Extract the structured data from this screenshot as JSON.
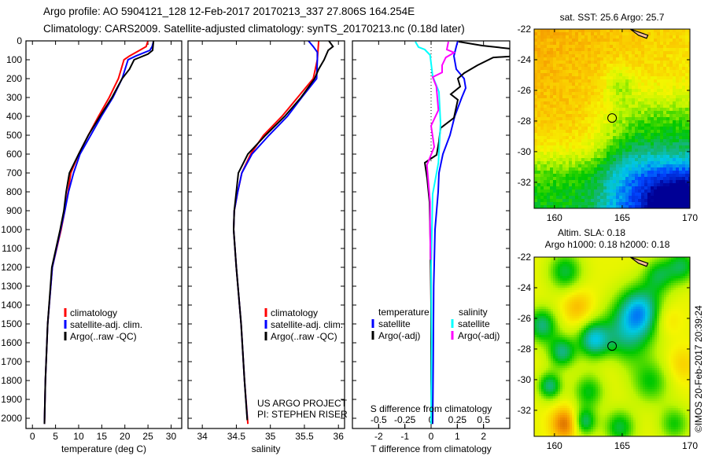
{
  "header": {
    "line1": "Argo profile: AO 5904121_128 12-Feb-2017 20170213_337 27.806S 164.254E",
    "line2": "Climatology: CARS2009. Satellite-adjusted climatology: synTS_20170213.nc (0.18d later)"
  },
  "colors": {
    "climatology": "#ff0000",
    "satellite": "#0000ff",
    "argo": "#000000",
    "s_satellite": "#00ffff",
    "s_argo": "#ff00ff"
  },
  "chart_data": [
    {
      "type": "line",
      "id": "temperature",
      "xlabel": "temperature (deg C)",
      "xlim": [
        -1.4,
        32.3
      ],
      "ylim": [
        0,
        2050
      ],
      "xticks": [
        0,
        5,
        10,
        15,
        20,
        25,
        30
      ],
      "yticks": [
        0,
        100,
        200,
        300,
        400,
        500,
        600,
        700,
        800,
        900,
        1000,
        1100,
        1200,
        1300,
        1400,
        1500,
        1600,
        1700,
        1800,
        1900,
        2000
      ],
      "legend": [
        "climatology",
        "satellite-adj. clim.",
        "Argo(..raw -QC)"
      ],
      "series": [
        {
          "name": "climatology",
          "color": "#ff0000",
          "points": [
            [
              25.0,
              0
            ],
            [
              24.6,
              30
            ],
            [
              23.2,
              50
            ],
            [
              21,
              80
            ],
            [
              19.8,
              100
            ],
            [
              18.6,
              200
            ],
            [
              16.6,
              300
            ],
            [
              14.3,
              400
            ],
            [
              12.1,
              500
            ],
            [
              10.0,
              600
            ],
            [
              8.3,
              700
            ],
            [
              7.7,
              800
            ],
            [
              7.0,
              900
            ],
            [
              6.2,
              1000
            ],
            [
              4.3,
              1200
            ],
            [
              3.3,
              1500
            ],
            [
              2.8,
              1800
            ],
            [
              2.6,
              2030
            ]
          ]
        },
        {
          "name": "satellite-adj. clim.",
          "color": "#0000ff",
          "points": [
            [
              26.2,
              0
            ],
            [
              25.9,
              30
            ],
            [
              25.4,
              50
            ],
            [
              22.4,
              80
            ],
            [
              20.7,
              100
            ],
            [
              19.4,
              200
            ],
            [
              17.4,
              300
            ],
            [
              14.9,
              400
            ],
            [
              12.6,
              500
            ],
            [
              10.3,
              600
            ],
            [
              8.9,
              700
            ],
            [
              7.8,
              800
            ],
            [
              7.0,
              900
            ],
            [
              6.1,
              1000
            ],
            [
              4.3,
              1200
            ],
            [
              3.3,
              1500
            ],
            [
              2.8,
              1800
            ],
            [
              2.6,
              2030
            ]
          ]
        },
        {
          "name": "Argo(..raw -QC)",
          "color": "#000000",
          "points": [
            [
              26.2,
              0
            ],
            [
              26.0,
              50
            ],
            [
              25.0,
              70
            ],
            [
              22.0,
              100
            ],
            [
              21.0,
              150
            ],
            [
              19.4,
              200
            ],
            [
              17.2,
              300
            ],
            [
              14.6,
              400
            ],
            [
              12.1,
              500
            ],
            [
              10.0,
              600
            ],
            [
              8.0,
              700
            ],
            [
              7.3,
              800
            ],
            [
              6.8,
              900
            ],
            [
              6.0,
              1000
            ],
            [
              4.2,
              1200
            ],
            [
              3.3,
              1500
            ],
            [
              2.8,
              1800
            ],
            [
              2.6,
              2030
            ]
          ]
        }
      ]
    },
    {
      "type": "line",
      "id": "salinity",
      "xlabel": "salinity",
      "xlim": [
        33.79,
        36.09
      ],
      "ylim": [
        0,
        2050
      ],
      "xticks": [
        34,
        34.5,
        35,
        35.5,
        36
      ],
      "legend": [
        "climatology",
        "satellite-adj. clim.",
        "Argo(..raw -QC)"
      ],
      "annotation": [
        "US ARGO PROJECT",
        "PI: STEPHEN RISER"
      ],
      "series": [
        {
          "name": "climatology",
          "color": "#ff0000",
          "points": [
            [
              35.71,
              0
            ],
            [
              35.69,
              100
            ],
            [
              35.63,
              200
            ],
            [
              35.4,
              300
            ],
            [
              35.17,
              400
            ],
            [
              34.9,
              500
            ],
            [
              34.71,
              600
            ],
            [
              34.58,
              700
            ],
            [
              34.52,
              800
            ],
            [
              34.47,
              900
            ],
            [
              34.46,
              1000
            ],
            [
              34.5,
              1200
            ],
            [
              34.57,
              1500
            ],
            [
              34.62,
              1800
            ],
            [
              34.67,
              2030
            ]
          ]
        },
        {
          "name": "satellite-adj. clim.",
          "color": "#0000ff",
          "points": [
            [
              35.56,
              0
            ],
            [
              35.63,
              30
            ],
            [
              35.69,
              60
            ],
            [
              35.69,
              100
            ],
            [
              35.68,
              200
            ],
            [
              35.46,
              300
            ],
            [
              35.25,
              400
            ],
            [
              34.98,
              500
            ],
            [
              34.73,
              600
            ],
            [
              34.58,
              700
            ],
            [
              34.52,
              800
            ],
            [
              34.47,
              900
            ],
            [
              34.46,
              1000
            ],
            [
              34.5,
              1200
            ],
            [
              34.57,
              1500
            ],
            [
              34.62,
              1800
            ],
            [
              34.66,
              2000
            ]
          ]
        },
        {
          "name": "Argo(..raw -QC)",
          "color": "#000000",
          "points": [
            [
              35.86,
              0
            ],
            [
              35.92,
              30
            ],
            [
              35.85,
              50
            ],
            [
              35.79,
              100
            ],
            [
              35.71,
              150
            ],
            [
              35.65,
              200
            ],
            [
              35.45,
              300
            ],
            [
              35.21,
              400
            ],
            [
              34.93,
              500
            ],
            [
              34.67,
              600
            ],
            [
              34.53,
              700
            ],
            [
              34.5,
              800
            ],
            [
              34.47,
              900
            ],
            [
              34.46,
              1000
            ],
            [
              34.5,
              1200
            ],
            [
              34.57,
              1500
            ],
            [
              34.62,
              1800
            ],
            [
              34.66,
              2010
            ]
          ]
        }
      ]
    },
    {
      "type": "line",
      "id": "difference",
      "xlabel": "T difference from climatology",
      "xlabel2": "S difference from climatology",
      "xlim": [
        -3,
        3
      ],
      "xlim_s": [
        -0.75,
        0.75
      ],
      "ylim": [
        0,
        2050
      ],
      "xticks": [
        -2,
        -1,
        0,
        1,
        2
      ],
      "xticks_s": [
        "-0.5",
        "-0.25",
        "0",
        "0.25",
        "0.5"
      ],
      "legend_temp_title": "temperature",
      "legend_sal_title": "salinity",
      "legend": [
        "satellite",
        "Argo(-adj)",
        "satellite",
        "Argo(-adj)"
      ],
      "series": [
        {
          "name": "T satellite",
          "color": "#0000ff",
          "points": [
            [
              1.02,
              0
            ],
            [
              0.96,
              30
            ],
            [
              0.87,
              80
            ],
            [
              0.96,
              150
            ],
            [
              1.26,
              200
            ],
            [
              1.32,
              250
            ],
            [
              1.17,
              300
            ],
            [
              0.9,
              400
            ],
            [
              0.72,
              500
            ],
            [
              0.45,
              600
            ],
            [
              0.3,
              700
            ],
            [
              0.27,
              800
            ],
            [
              0.21,
              900
            ],
            [
              0.15,
              1000
            ],
            [
              0.1,
              1300
            ],
            [
              0.08,
              1700
            ],
            [
              0.06,
              2030
            ]
          ]
        },
        {
          "name": "T Argo(-adj)",
          "color": "#000000",
          "points": [
            [
              1.05,
              4
            ],
            [
              1.95,
              25
            ],
            [
              3.3,
              46
            ],
            [
              3.3,
              70
            ],
            [
              2.97,
              83
            ],
            [
              2.37,
              88
            ],
            [
              1.77,
              129
            ],
            [
              1.26,
              171
            ],
            [
              1.02,
              200
            ],
            [
              1.11,
              242
            ],
            [
              0.75,
              283
            ],
            [
              1.02,
              312
            ],
            [
              0.87,
              408
            ],
            [
              0.36,
              462
            ],
            [
              0.3,
              533
            ],
            [
              0.21,
              604
            ],
            [
              -0.24,
              646
            ],
            [
              -0.15,
              729
            ],
            [
              -0.06,
              854
            ],
            [
              -0.03,
              1062
            ],
            [
              0,
              1400
            ],
            [
              0,
              1800
            ],
            [
              0.02,
              2030
            ]
          ]
        },
        {
          "name": "S satellite",
          "color": "#00ffff",
          "points": [
            [
              -0.15,
              4
            ],
            [
              -0.12,
              33
            ],
            [
              -0.06,
              46
            ],
            [
              -0.01,
              75
            ],
            [
              0.015,
              187
            ],
            [
              0.075,
              271
            ],
            [
              0.09,
              437
            ],
            [
              0.07,
              646
            ],
            [
              0.015,
              812
            ],
            [
              0,
              1200
            ],
            [
              0.005,
              1600
            ],
            [
              0.0,
              2030
            ]
          ]
        },
        {
          "name": "S Argo(-adj)",
          "color": "#ff00ff",
          "points": [
            [
              0.165,
              4
            ],
            [
              0.15,
              46
            ],
            [
              0.22,
              62
            ],
            [
              0.14,
              88
            ],
            [
              0.105,
              129
            ],
            [
              0.105,
              167
            ],
            [
              0.015,
              192
            ],
            [
              0.05,
              242
            ],
            [
              0.07,
              367
            ],
            [
              0,
              450
            ],
            [
              0.03,
              562
            ],
            [
              -0.04,
              658
            ],
            [
              -0.01,
              854
            ],
            [
              -0.01,
              1000
            ],
            [
              -0.005,
              1160
            ]
          ]
        }
      ]
    },
    {
      "type": "heatmap",
      "id": "sst-map",
      "title": "sat. SST: 25.6 Argo: 25.7",
      "xlim": [
        158.5,
        170
      ],
      "ylim": [
        -33.7,
        -22
      ],
      "xticks": [
        160,
        165,
        170
      ],
      "yticks": [
        -22,
        -24,
        -26,
        -28,
        -30,
        -32
      ],
      "marker": {
        "lon": 164.254,
        "lat": -27.806
      }
    },
    {
      "type": "heatmap",
      "id": "sla-map",
      "title": "Altim. SLA: 0.18",
      "subtitle": "Argo h1000: 0.18 h2000: 0.18",
      "xlim": [
        158.5,
        170
      ],
      "ylim": [
        -33.7,
        -22
      ],
      "xticks": [
        160,
        165,
        170
      ],
      "yticks": [
        -22,
        -24,
        -26,
        -28,
        -30,
        -32
      ],
      "marker": {
        "lon": 164.254,
        "lat": -27.806
      }
    }
  ],
  "footer": {
    "copyright": "©IMOS 20-Feb-2017 20:39:24"
  }
}
